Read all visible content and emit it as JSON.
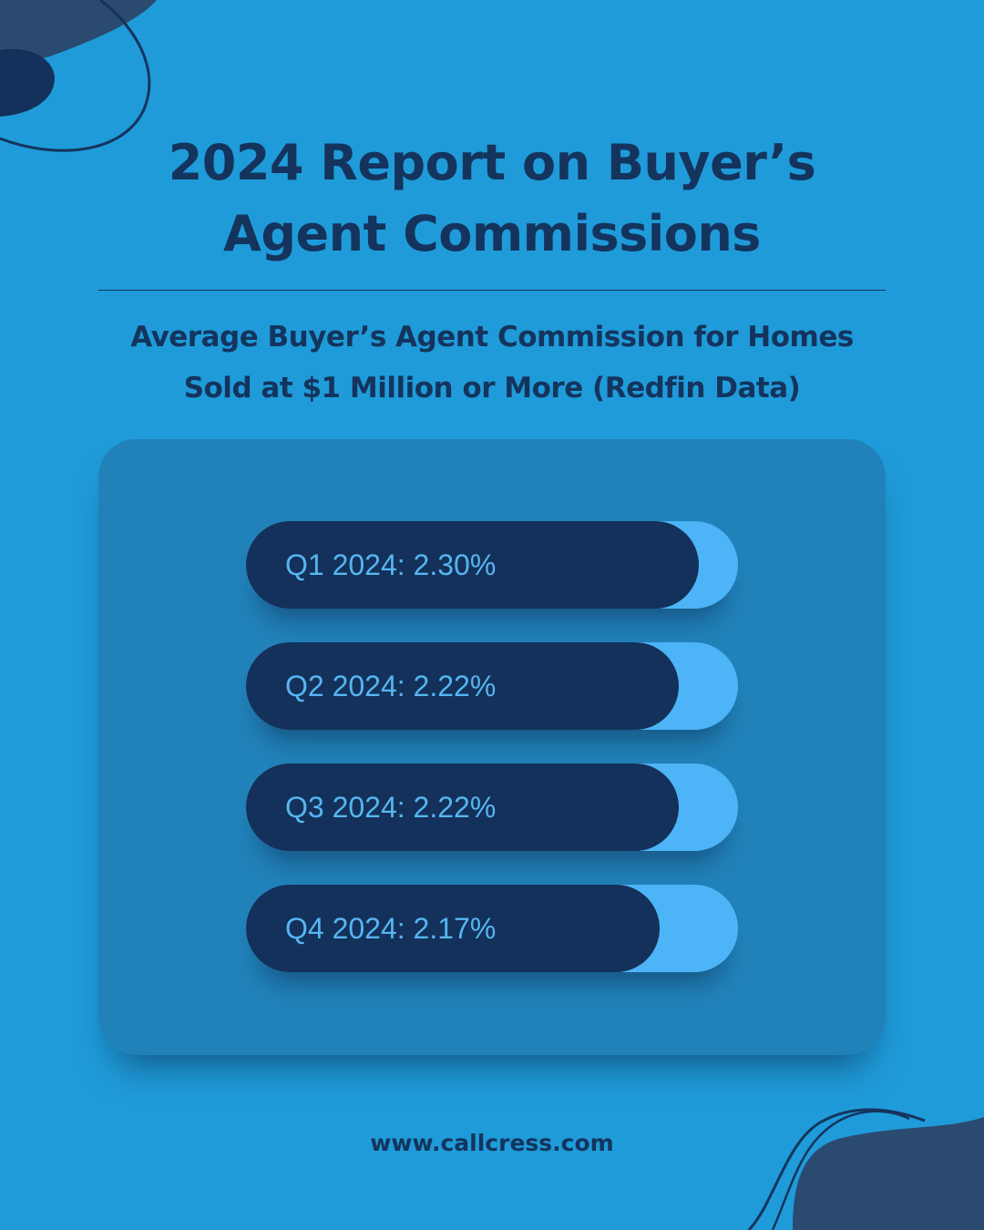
{
  "header": {
    "title": "2024 Report on Buyer’s\nAgent Commissions",
    "subtitle": "Average Buyer’s Agent Commission for Homes\nSold at $1 Million or More (Redfin Data)"
  },
  "footer": {
    "url": "www.callcress.com"
  },
  "colors": {
    "background": "#1f9bd9",
    "card": "#2182b9",
    "bar_fill": "#13315a",
    "bar_track": "#4db4f7",
    "label": "#56b5f1",
    "title": "#14345d",
    "decor": "#2a4a70"
  },
  "chart_data": {
    "type": "bar",
    "orientation": "horizontal",
    "title": "Average Buyer’s Agent Commission for Homes Sold at $1 Million or More (Redfin Data)",
    "categories": [
      "Q1 2024",
      "Q2 2024",
      "Q3 2024",
      "Q4 2024"
    ],
    "values": [
      2.3,
      2.22,
      2.22,
      2.17
    ],
    "unit": "%",
    "labels": [
      "Q1 2024: 2.30%",
      "Q2 2024: 2.22%",
      "Q3 2024: 2.22%",
      "Q4 2024: 2.17%"
    ],
    "fill_fraction_of_track": [
      0.92,
      0.88,
      0.88,
      0.84
    ],
    "grid": false,
    "legend": "none"
  }
}
